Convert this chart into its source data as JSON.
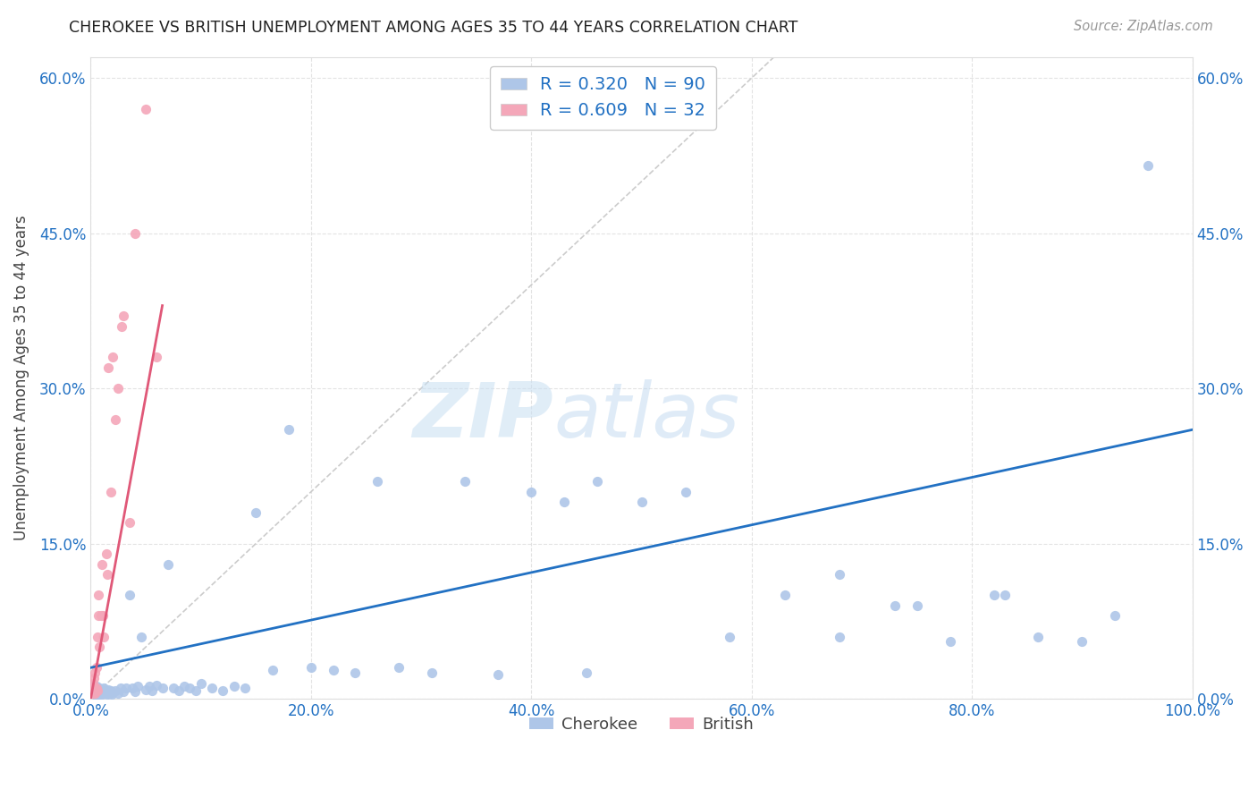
{
  "title": "CHEROKEE VS BRITISH UNEMPLOYMENT AMONG AGES 35 TO 44 YEARS CORRELATION CHART",
  "source": "Source: ZipAtlas.com",
  "ylabel": "Unemployment Among Ages 35 to 44 years",
  "xlim": [
    0,
    1.0
  ],
  "ylim": [
    0,
    0.62
  ],
  "xticks": [
    0.0,
    0.2,
    0.4,
    0.6,
    0.8,
    1.0
  ],
  "xtick_labels": [
    "0.0%",
    "20.0%",
    "40.0%",
    "60.0%",
    "80.0%",
    "100.0%"
  ],
  "ytick_labels": [
    "0.0%",
    "15.0%",
    "30.0%",
    "45.0%",
    "60.0%"
  ],
  "yticks": [
    0.0,
    0.15,
    0.3,
    0.45,
    0.6
  ],
  "watermark_zip": "ZIP",
  "watermark_atlas": "atlas",
  "cherokee_color": "#aec6e8",
  "british_color": "#f4a7b9",
  "cherokee_line_color": "#2271c3",
  "british_line_color": "#e05878",
  "R_cherokee": 0.32,
  "N_cherokee": 90,
  "R_british": 0.609,
  "N_british": 32,
  "cherokee_x": [
    0.001,
    0.002,
    0.002,
    0.003,
    0.003,
    0.004,
    0.004,
    0.005,
    0.005,
    0.005,
    0.006,
    0.006,
    0.007,
    0.007,
    0.007,
    0.008,
    0.008,
    0.008,
    0.009,
    0.009,
    0.01,
    0.01,
    0.011,
    0.012,
    0.012,
    0.013,
    0.014,
    0.015,
    0.015,
    0.016,
    0.017,
    0.018,
    0.019,
    0.02,
    0.022,
    0.025,
    0.027,
    0.03,
    0.032,
    0.035,
    0.038,
    0.04,
    0.043,
    0.046,
    0.05,
    0.053,
    0.056,
    0.06,
    0.065,
    0.07,
    0.075,
    0.08,
    0.085,
    0.09,
    0.095,
    0.1,
    0.11,
    0.12,
    0.13,
    0.14,
    0.15,
    0.165,
    0.18,
    0.2,
    0.22,
    0.24,
    0.26,
    0.28,
    0.31,
    0.34,
    0.37,
    0.4,
    0.43,
    0.46,
    0.5,
    0.54,
    0.58,
    0.63,
    0.68,
    0.73,
    0.78,
    0.82,
    0.86,
    0.9,
    0.93,
    0.83,
    0.75,
    0.68,
    0.96,
    0.45
  ],
  "cherokee_y": [
    0.005,
    0.008,
    0.012,
    0.005,
    0.01,
    0.005,
    0.008,
    0.003,
    0.006,
    0.012,
    0.004,
    0.008,
    0.005,
    0.007,
    0.01,
    0.004,
    0.007,
    0.01,
    0.005,
    0.008,
    0.004,
    0.006,
    0.005,
    0.007,
    0.01,
    0.005,
    0.008,
    0.004,
    0.006,
    0.009,
    0.005,
    0.008,
    0.004,
    0.006,
    0.008,
    0.005,
    0.01,
    0.007,
    0.01,
    0.1,
    0.01,
    0.007,
    0.012,
    0.06,
    0.009,
    0.012,
    0.008,
    0.013,
    0.01,
    0.13,
    0.01,
    0.008,
    0.012,
    0.01,
    0.008,
    0.015,
    0.01,
    0.008,
    0.012,
    0.01,
    0.18,
    0.028,
    0.26,
    0.03,
    0.028,
    0.025,
    0.21,
    0.03,
    0.025,
    0.21,
    0.023,
    0.2,
    0.19,
    0.21,
    0.19,
    0.2,
    0.06,
    0.1,
    0.06,
    0.09,
    0.055,
    0.1,
    0.06,
    0.055,
    0.08,
    0.1,
    0.09,
    0.12,
    0.515,
    0.025
  ],
  "british_x": [
    0.001,
    0.001,
    0.002,
    0.002,
    0.003,
    0.003,
    0.004,
    0.004,
    0.005,
    0.005,
    0.006,
    0.006,
    0.007,
    0.007,
    0.008,
    0.009,
    0.01,
    0.011,
    0.012,
    0.014,
    0.015,
    0.016,
    0.018,
    0.02,
    0.022,
    0.025,
    0.028,
    0.03,
    0.035,
    0.04,
    0.05,
    0.06
  ],
  "british_y": [
    0.005,
    0.01,
    0.005,
    0.015,
    0.008,
    0.02,
    0.005,
    0.025,
    0.01,
    0.03,
    0.008,
    0.06,
    0.08,
    0.1,
    0.05,
    0.08,
    0.13,
    0.08,
    0.06,
    0.14,
    0.12,
    0.32,
    0.2,
    0.33,
    0.27,
    0.3,
    0.36,
    0.37,
    0.17,
    0.45,
    0.57,
    0.33
  ],
  "cherokee_trend_x": [
    0.0,
    1.0
  ],
  "cherokee_trend_y": [
    0.03,
    0.26
  ],
  "british_trend_x": [
    0.0,
    0.065
  ],
  "british_trend_y": [
    0.0,
    0.38
  ],
  "ref_line_x": [
    0.0,
    0.62
  ],
  "ref_line_y": [
    0.0,
    0.62
  ]
}
